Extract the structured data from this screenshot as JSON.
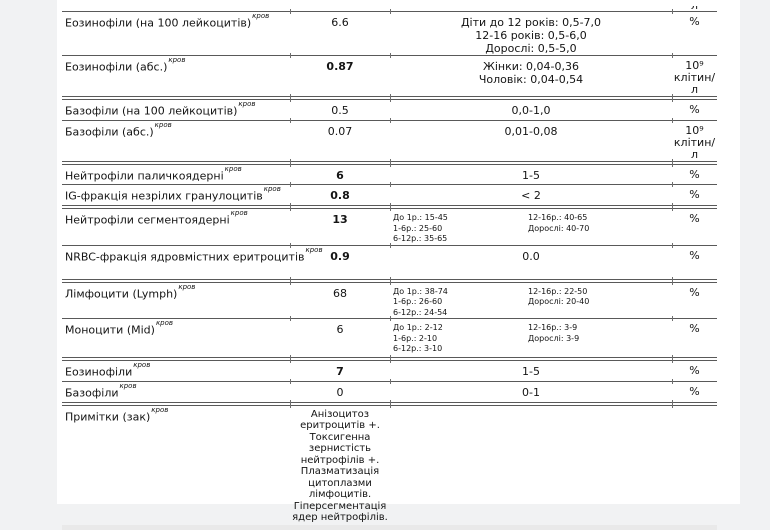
{
  "page": {
    "kind": "lab-results-report",
    "language": "uk",
    "margin_color": "#f1f2f3",
    "content_color": "#ffffff",
    "line_color": "#595959"
  },
  "top_clipped_unit": "л",
  "groups": [
    {
      "rows": [
        {
          "name": "Еозинофіли (на 100 лейкоцитів)",
          "sup": "кров",
          "value": "6.6",
          "bold": false,
          "ref": "Діти до 12 років: 0,5-7,0\n12-16 років: 0,5-6,0\nДорослі: 0,5-5,0",
          "unit": "%"
        },
        {
          "name": "Еозинофіли (абс.)",
          "sup": "кров",
          "value": "0.87",
          "bold": true,
          "ref": "Жінки: 0,04-0,36\nЧоловік: 0,04-0,54",
          "unit": "10⁹\nклітин/\nл"
        }
      ]
    },
    {
      "rows": [
        {
          "name": "Базофіли (на 100 лейкоцитів)",
          "sup": "кров",
          "value": "0.5",
          "bold": false,
          "ref": "0,0-1,0",
          "unit": "%"
        },
        {
          "name": "Базофіли (абс.)",
          "sup": "кров",
          "value": "0.07",
          "bold": false,
          "ref": "0,01-0,08",
          "unit": "10⁹\nклітин/\nл"
        }
      ]
    },
    {
      "rows": [
        {
          "name": "Нейтрофіли паличкоядерні",
          "sup": "кров",
          "value": "6",
          "bold": true,
          "ref": "1-5",
          "unit": "%"
        },
        {
          "name": "IG-фракція незрілих гранулоцитів",
          "sup": "кров",
          "value": "0.8",
          "bold": true,
          "ref": "< 2",
          "unit": "%"
        }
      ]
    },
    {
      "rows": [
        {
          "name": "Нейтрофіли сегментоядерні",
          "sup": "кров",
          "value": "13",
          "bold": true,
          "ref_left": "До 1р.: 15-45\n1-6р.: 25-60\n6-12р.: 35-65",
          "ref_right": "12-16р.: 40-65\nДорослі: 40-70",
          "unit": "%"
        },
        {
          "name": "NRBC-фракція ядровмістних еритроцитів",
          "sup": "кров",
          "value": "0.9",
          "bold": true,
          "ref": "0.0",
          "unit": "%"
        }
      ]
    },
    {
      "rows": [
        {
          "name": "Лімфоцити (Lymph)",
          "sup": "кров",
          "value": "68",
          "bold": false,
          "ref_left": "До 1р.: 38-74\n1-6р.: 26-60\n6-12р.: 24-54",
          "ref_right": "12-16р.: 22-50\nДорослі: 20-40",
          "unit": "%"
        },
        {
          "name": "Моноцити (Mid)",
          "sup": "кров",
          "value": "6",
          "bold": false,
          "ref_left": "До 1р.: 2-12\n1-6р.: 2-10\n6-12р.: 3-10",
          "ref_right": "12-16р.: 3-9\nДорослі: 3-9",
          "unit": "%"
        }
      ]
    },
    {
      "rows": [
        {
          "name": "Еозинофіли",
          "sup": "кров",
          "value": "7",
          "bold": true,
          "ref": "1-5",
          "unit": "%"
        },
        {
          "name": "Базофіли",
          "sup": "кров",
          "value": "0",
          "bold": false,
          "ref": "0-1",
          "unit": "%"
        }
      ]
    },
    {
      "rows": [
        {
          "name": "Примітки (зак)",
          "sup": "кров",
          "value": "Анізоцитоз\nеритроцитів +.\nТоксигенна\nзернистість\nнейтрофілів +.\nПлазматизація\nцитоплазми\nлімфоцитів.\nГіперсегментація\nядер нейтрофілів.",
          "bold": false,
          "ref": "",
          "unit": ""
        }
      ]
    }
  ]
}
